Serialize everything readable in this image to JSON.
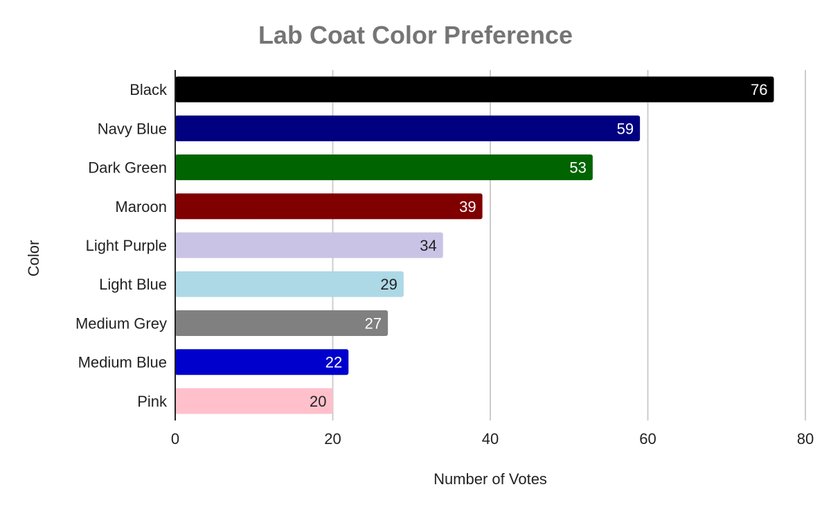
{
  "chart_data": {
    "type": "bar",
    "orientation": "horizontal",
    "title": "Lab Coat Color Preference",
    "xlabel": "Number of Votes",
    "ylabel": "Color",
    "xlim": [
      0,
      80
    ],
    "xticks": [
      0,
      20,
      40,
      60,
      80
    ],
    "grid": "vertical",
    "categories": [
      "Black",
      "Navy Blue",
      "Dark Green",
      "Maroon",
      "Light Purple",
      "Light Blue",
      "Medium Grey",
      "Medium Blue",
      "Pink"
    ],
    "values": [
      76,
      59,
      53,
      39,
      34,
      29,
      27,
      22,
      20
    ],
    "colors": [
      "#000000",
      "#000080",
      "#006400",
      "#800000",
      "#C9C3E5",
      "#ADD8E6",
      "#808080",
      "#0000CD",
      "#FFC0CB"
    ],
    "label_colors": [
      "#ffffff",
      "#ffffff",
      "#ffffff",
      "#ffffff",
      "#222222",
      "#222222",
      "#ffffff",
      "#ffffff",
      "#222222"
    ]
  }
}
